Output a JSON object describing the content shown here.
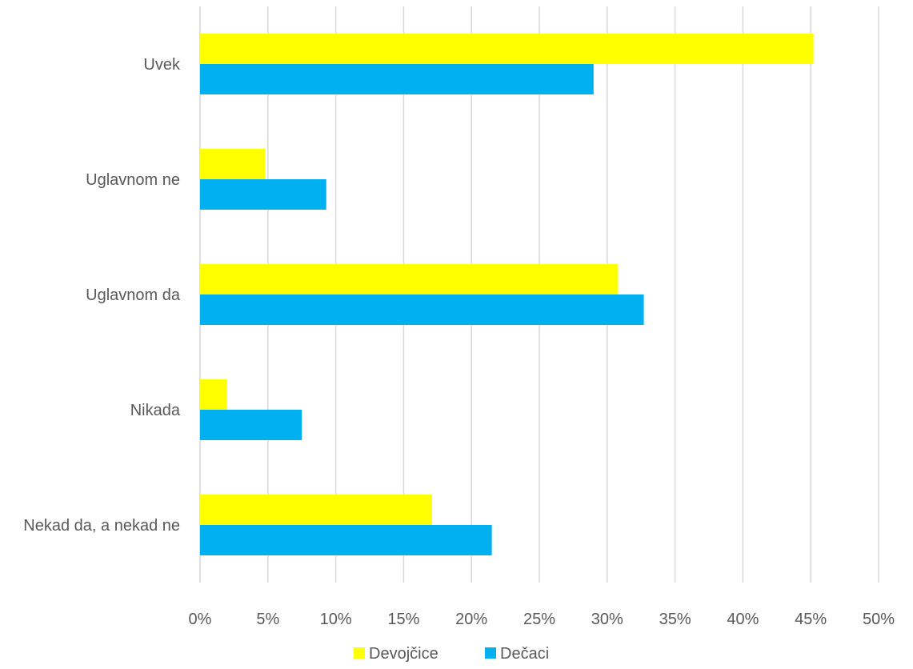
{
  "chart_data": {
    "type": "bar",
    "orientation": "horizontal",
    "categories": [
      "Uvek",
      "Uglavnom ne",
      "Uglavnom da",
      "Nikada",
      "Nekad da, a nekad ne"
    ],
    "series": [
      {
        "name": "Devojčice",
        "color": "#ffff00",
        "values": [
          45.2,
          4.8,
          30.8,
          2.0,
          17.1
        ]
      },
      {
        "name": "Dečaci",
        "color": "#00b0f0",
        "values": [
          29.0,
          9.3,
          32.7,
          7.5,
          21.5
        ]
      }
    ],
    "x_ticks": [
      "0%",
      "5%",
      "10%",
      "15%",
      "20%",
      "25%",
      "30%",
      "35%",
      "40%",
      "45%",
      "50%"
    ],
    "xlim": [
      0,
      50
    ],
    "unit": "%",
    "grid": "vertical",
    "legend_position": "bottom",
    "title": "",
    "xlabel": "",
    "ylabel": ""
  }
}
